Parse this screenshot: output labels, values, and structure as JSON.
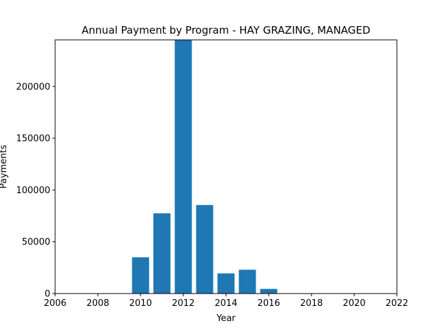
{
  "chart_data": {
    "type": "bar",
    "title": "Annual Payment by Program - HAY GRAZING, MANAGED",
    "xlabel": "Year",
    "ylabel": "Payments",
    "x": [
      2010,
      2011,
      2012,
      2013,
      2014,
      2015,
      2016
    ],
    "values": [
      35000,
      77500,
      245000,
      85500,
      19500,
      23000,
      4500
    ],
    "xlim": [
      2006,
      2022
    ],
    "ylim": [
      0,
      245000
    ],
    "xticks": [
      2006,
      2008,
      2010,
      2012,
      2014,
      2016,
      2018,
      2020,
      2022
    ],
    "yticks": [
      0,
      50000,
      100000,
      150000,
      200000
    ],
    "bar_color": "#1f77b4",
    "grid": false,
    "legend": "none"
  }
}
